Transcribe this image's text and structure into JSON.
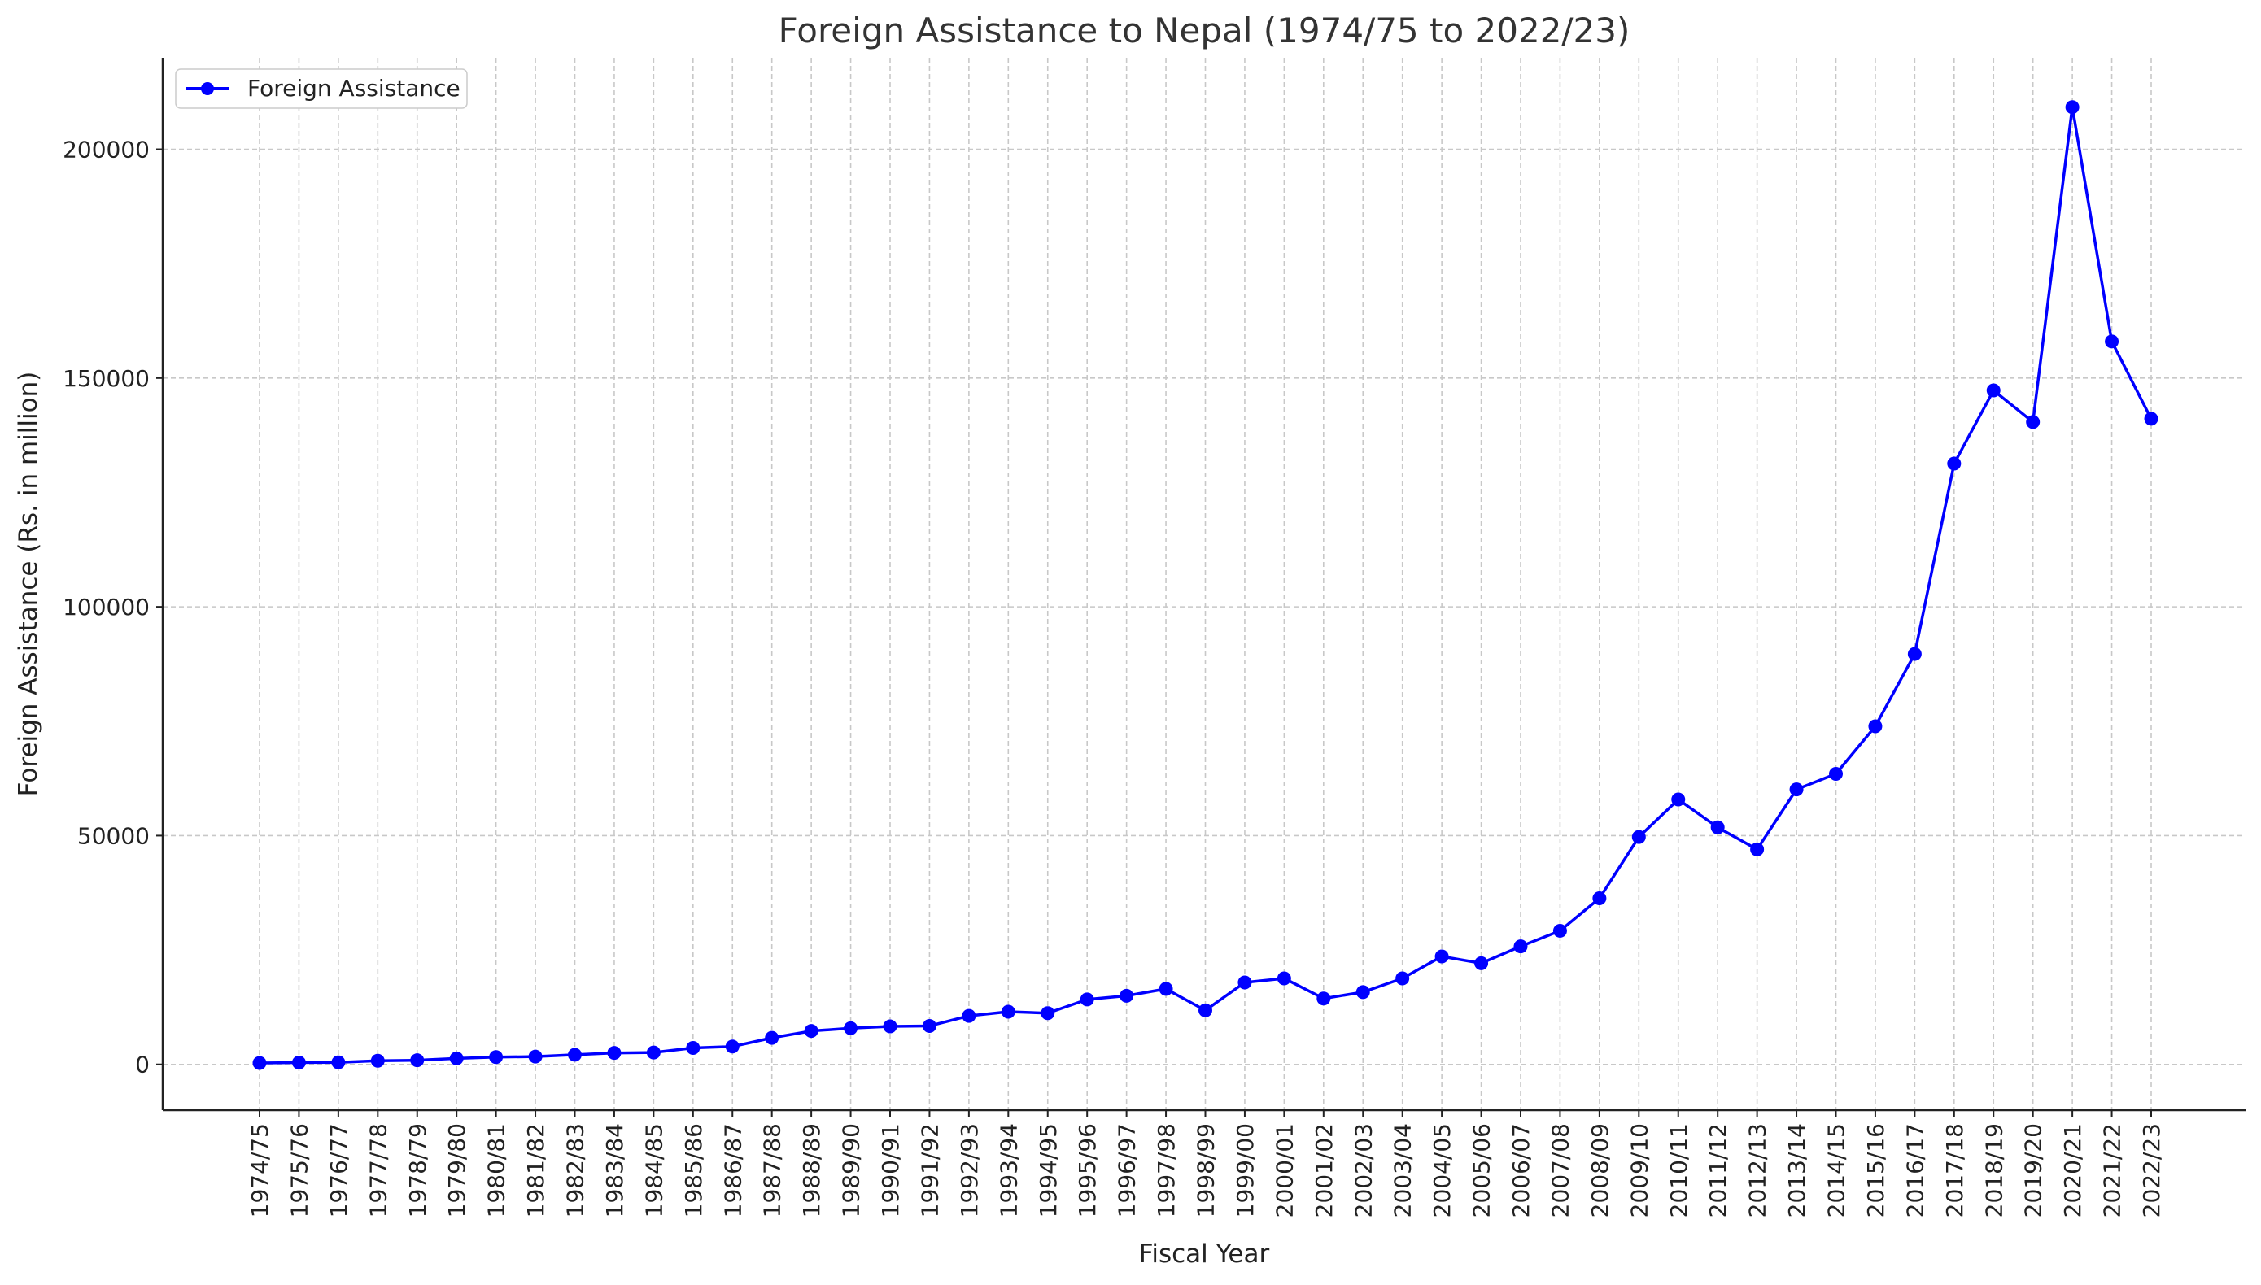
{
  "chart_data": {
    "type": "line",
    "title": "Foreign Assistance to Nepal (1974/75 to 2022/23)",
    "xlabel": "Fiscal Year",
    "ylabel": "Foreign Assistance (Rs. in million)",
    "ylim": [
      -10000,
      220000
    ],
    "yticks": [
      0,
      50000,
      100000,
      150000,
      200000
    ],
    "grid": true,
    "legend_position": "top-left",
    "categories": [
      "1974/75",
      "1975/76",
      "1976/77",
      "1977/78",
      "1978/79",
      "1979/80",
      "1980/81",
      "1981/82",
      "1982/83",
      "1983/84",
      "1984/85",
      "1985/86",
      "1986/87",
      "1987/88",
      "1988/89",
      "1989/90",
      "1990/91",
      "1991/92",
      "1992/93",
      "1993/94",
      "1994/95",
      "1995/96",
      "1996/97",
      "1997/98",
      "1998/99",
      "1999/00",
      "2000/01",
      "2001/02",
      "2002/03",
      "2003/04",
      "2004/05",
      "2005/06",
      "2006/07",
      "2007/08",
      "2008/09",
      "2009/10",
      "2010/11",
      "2011/12",
      "2012/13",
      "2013/14",
      "2014/15",
      "2015/16",
      "2016/17",
      "2017/18",
      "2018/19",
      "2019/20",
      "2020/21",
      "2021/22",
      "2022/23"
    ],
    "series": [
      {
        "name": "Foreign Assistance",
        "color": "#0000ff",
        "values": [
          300,
          400,
          450,
          800,
          900,
          1300,
          1600,
          1700,
          2100,
          2500,
          2600,
          3600,
          3900,
          5800,
          7300,
          7900,
          8300,
          8400,
          10600,
          11500,
          11200,
          14200,
          15000,
          16500,
          11800,
          17900,
          18800,
          14400,
          15800,
          18800,
          23600,
          22100,
          25800,
          29200,
          36300,
          49700,
          57900,
          51800,
          47000,
          60100,
          63500,
          73900,
          89700,
          131300,
          147300,
          140400,
          209200,
          158000,
          141100
        ]
      }
    ]
  }
}
